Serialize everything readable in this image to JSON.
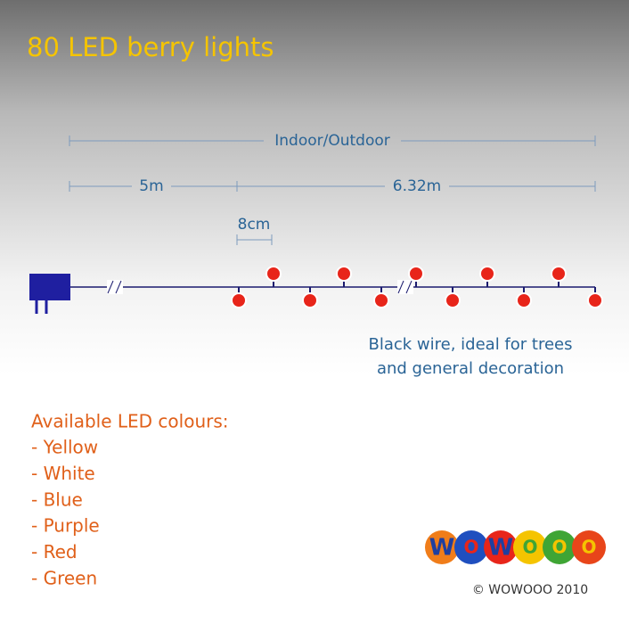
{
  "title": "80 LED berry lights",
  "dimensions": {
    "overall": "Indoor/Outdoor",
    "lead": "5m",
    "lit_length": "6.32m",
    "spacing": "8cm"
  },
  "note": [
    "Black wire, ideal for trees",
    "and general decoration"
  ],
  "colours": {
    "heading": "Available LED colours:",
    "items": [
      "- Yellow",
      "- White",
      "- Blue",
      "- Purple",
      "- Red",
      "- Green"
    ]
  },
  "logo": {
    "letters": [
      "W",
      "O",
      "W",
      "O",
      "O",
      "O"
    ],
    "copyright": "© WOWOOO 2010"
  }
}
